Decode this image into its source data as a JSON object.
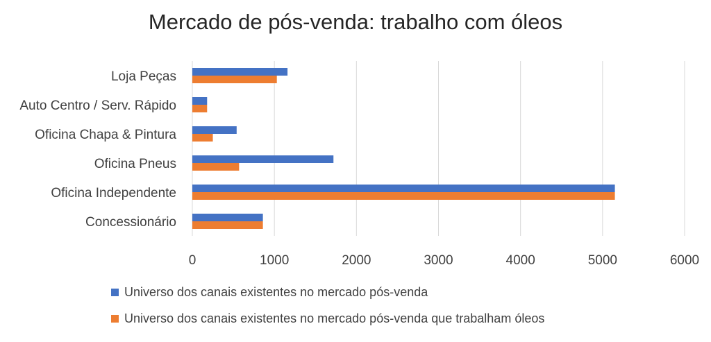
{
  "chart_data": {
    "type": "bar",
    "orientation": "horizontal",
    "title": "Mercado de pós-venda: trabalho com óleos",
    "categories": [
      "Loja Peças",
      "Auto Centro / Serv. Rápido",
      "Oficina Chapa & Pintura",
      "Oficina Pneus",
      "Oficina Independente",
      "Concessionário"
    ],
    "series": [
      {
        "name": "Universo dos canais existentes no mercado pós-venda",
        "color": "#4472C4",
        "values": [
          1160,
          180,
          540,
          1720,
          5150,
          860
        ]
      },
      {
        "name": "Universo dos canais existentes no mercado pós-venda que trabalham óleos",
        "color": "#ED7D31",
        "values": [
          1030,
          180,
          250,
          570,
          5150,
          860
        ]
      }
    ],
    "xlim": [
      0,
      6000
    ],
    "xticks": [
      "0",
      "1000",
      "2000",
      "3000",
      "4000",
      "5000",
      "6000"
    ],
    "grid": "vertical",
    "legend_position": "bottom"
  }
}
